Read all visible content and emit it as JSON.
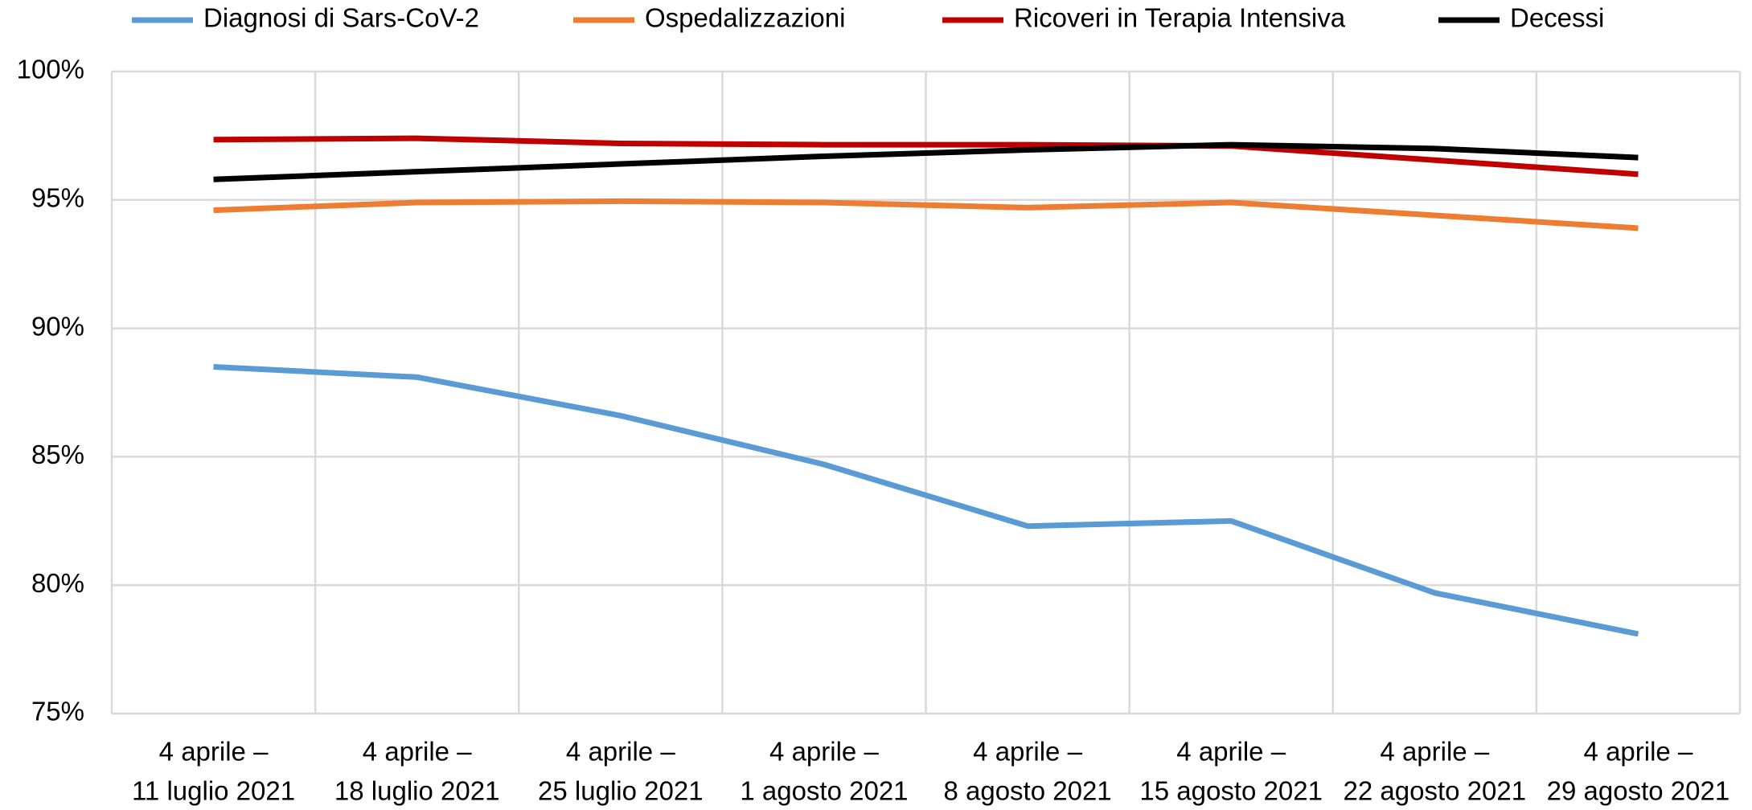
{
  "chart_data": {
    "type": "line",
    "categories": [
      [
        "4 aprile –",
        "11 luglio 2021"
      ],
      [
        "4 aprile –",
        "18 luglio 2021"
      ],
      [
        "4 aprile –",
        "25 luglio 2021"
      ],
      [
        "4 aprile –",
        "1 agosto 2021"
      ],
      [
        "4 aprile –",
        "8 agosto 2021"
      ],
      [
        "4 aprile –",
        "15 agosto 2021"
      ],
      [
        "4 aprile –",
        "22 agosto 2021"
      ],
      [
        "4 aprile –",
        "29 agosto 2021"
      ]
    ],
    "series": [
      {
        "name": "Diagnosi di Sars-CoV-2",
        "color": "#5b9bd5",
        "values": [
          88.5,
          88.1,
          86.6,
          84.7,
          82.3,
          82.5,
          79.7,
          78.1
        ]
      },
      {
        "name": "Ospedalizzazioni",
        "color": "#ed7d31",
        "values": [
          94.6,
          94.9,
          94.95,
          94.9,
          94.7,
          94.9,
          94.4,
          93.9
        ]
      },
      {
        "name": "Ricoveri in Terapia Intensiva",
        "color": "#c00000",
        "values": [
          97.35,
          97.4,
          97.2,
          97.15,
          97.15,
          97.1,
          96.55,
          96.0
        ]
      },
      {
        "name": "Decessi",
        "color": "#000000",
        "values": [
          95.8,
          96.1,
          96.4,
          96.7,
          96.95,
          97.15,
          97.0,
          96.65
        ]
      }
    ],
    "ylim": [
      75,
      100
    ],
    "yticks": [
      {
        "value": 75,
        "label": "75%"
      },
      {
        "value": 80,
        "label": "80%"
      },
      {
        "value": 85,
        "label": "85%"
      },
      {
        "value": 90,
        "label": "90%"
      },
      {
        "value": 95,
        "label": "95%"
      },
      {
        "value": 100,
        "label": "100%"
      }
    ],
    "grid": true,
    "legend": "top"
  }
}
